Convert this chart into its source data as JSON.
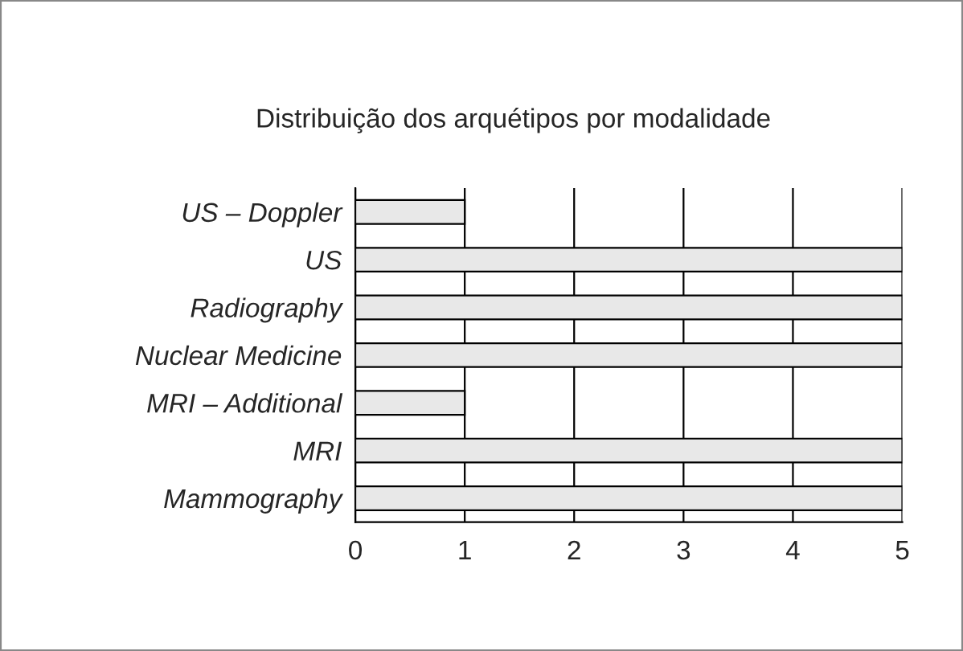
{
  "chart_data": {
    "type": "bar",
    "orientation": "horizontal",
    "title": "Distribuição dos arquétipos por modalidade",
    "categories": [
      "US – Doppler",
      "US",
      "Radiography",
      "Nuclear Medicine",
      "MRI – Additional",
      "MRI",
      "Mammography"
    ],
    "values": [
      1,
      5,
      5,
      5,
      1,
      5,
      5
    ],
    "color": "#e8e8e8",
    "xlim": [
      0,
      5
    ],
    "xticks": [
      0,
      1,
      2,
      3,
      4,
      5
    ],
    "grid": "x",
    "legend": false
  }
}
